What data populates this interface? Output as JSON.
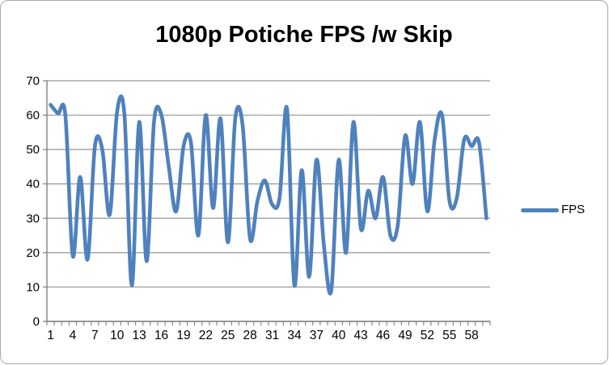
{
  "chart_data": {
    "type": "line",
    "title": "1080p Potiche FPS /w Skip",
    "xlabel": "",
    "ylabel": "",
    "ylim": [
      0,
      70
    ],
    "grid": true,
    "smooth": true,
    "legend_position": "right",
    "colors": {
      "series": "#4f81bd",
      "grid": "#969696",
      "axis": "#7f7f7f",
      "text": "#000000",
      "frame_border": "#a9a9a9"
    },
    "y_axis": {
      "min": 0,
      "max": 70,
      "step": 10,
      "tick_labels": [
        "0",
        "10",
        "20",
        "30",
        "40",
        "50",
        "60",
        "70"
      ]
    },
    "x_axis": {
      "label_interval": 3,
      "tick_labels": [
        "1",
        "4",
        "7",
        "10",
        "13",
        "16",
        "19",
        "22",
        "25",
        "28",
        "31",
        "34",
        "37",
        "40",
        "43",
        "46",
        "49",
        "52",
        "55",
        "58"
      ]
    },
    "x": [
      1,
      2,
      3,
      4,
      5,
      6,
      7,
      8,
      9,
      10,
      11,
      12,
      13,
      14,
      15,
      16,
      17,
      18,
      19,
      20,
      21,
      22,
      23,
      24,
      25,
      26,
      27,
      28,
      29,
      30,
      31,
      32,
      33,
      34,
      35,
      36,
      37,
      38,
      39,
      40,
      41,
      42,
      43,
      44,
      45,
      46,
      47,
      48,
      49,
      50,
      51,
      52,
      53,
      54,
      55,
      56,
      57,
      58,
      59,
      60
    ],
    "series": [
      {
        "name": "FPS",
        "color": "#4f81bd",
        "values": [
          63,
          60.5,
          60,
          19,
          42,
          18,
          51,
          50,
          31,
          61,
          60,
          10.5,
          58,
          17.5,
          58,
          60,
          45,
          32,
          51,
          52,
          25,
          60,
          33,
          59,
          23,
          59,
          57,
          24,
          35,
          41,
          34,
          36,
          62,
          10.5,
          44,
          13,
          47,
          22,
          9,
          47,
          20,
          58,
          27,
          38,
          30,
          42,
          25,
          28,
          54,
          40,
          58,
          32,
          53,
          60,
          35,
          36,
          53,
          51,
          52,
          30
        ]
      }
    ]
  },
  "legend": {
    "label": "FPS"
  }
}
